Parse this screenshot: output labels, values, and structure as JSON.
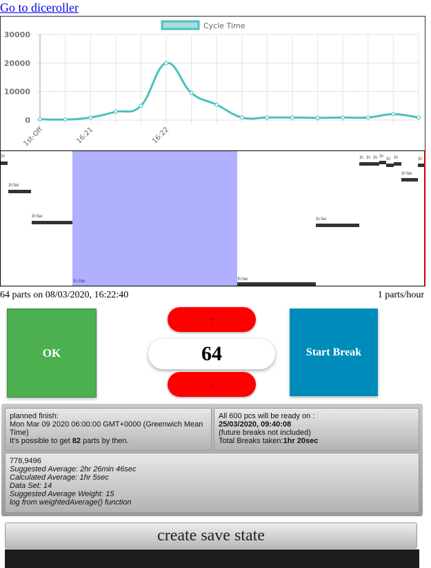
{
  "nav": {
    "link_text": "Go to diceroller"
  },
  "chart_data": {
    "type": "line",
    "legend": "Cycle Time",
    "x": [
      "1st-Off",
      "",
      "16:21",
      "",
      "",
      "16:22",
      "",
      "",
      "",
      "",
      "",
      "",
      "",
      "",
      "",
      ""
    ],
    "series": [
      {
        "name": "Cycle Time",
        "values": [
          300,
          200,
          900,
          2900,
          5000,
          20000,
          9500,
          5400,
          900,
          900,
          900,
          800,
          900,
          900,
          2100,
          900
        ]
      }
    ],
    "ylim": [
      0,
      30000
    ],
    "yticks": [
      0,
      10000,
      20000,
      30000
    ],
    "ytick_labels": [
      "0",
      "10000",
      "20000",
      "30000"
    ],
    "grid": true,
    "legend_position": "top-center",
    "color": "#4bc0c0"
  },
  "timeline": {
    "labels": [
      "1hr",
      "1hr 5sec",
      "1hr 5sec",
      "1hr 20sec",
      "1hr 5sec",
      "1hr 5sec",
      "1hr",
      "1hr",
      "1hr",
      "1hr",
      "1hr",
      "1hr",
      "1hr 5sec",
      "1hr"
    ],
    "break_color": "#b0b0ff"
  },
  "status": {
    "parts_summary": "64 parts on 08/03/2020, 16:22:40",
    "rate": "1 parts/hour"
  },
  "controls": {
    "ok_label": "OK",
    "plus_label": "+",
    "minus_label": "-",
    "count": "64",
    "break_label": "Start Break"
  },
  "planned": {
    "heading": "planned finish:",
    "date": "Mon Mar 09 2020 06:00:00 GMT+0000 (Greenwich Mean Time)",
    "possible_prefix": "It's possible to get ",
    "possible_count": "82",
    "possible_suffix": " parts by then."
  },
  "ready": {
    "heading": "All 600 pcs will be ready on :",
    "date": "25/03/2020, 09:40:08",
    "note": "(future breaks not included)",
    "breaks_prefix": "Total Breaks taken:",
    "breaks_value": "1hr 20sec"
  },
  "stats": {
    "raw": "778,9496",
    "suggested": "Suggested Average: 2hr 26min 46sec",
    "calculated": "Calculated Average: 1hr 5sec",
    "dataset": "Data Set: 14",
    "weight": "Suggested Average Weight: 15",
    "log": "log from weightedAverage() function"
  },
  "save": {
    "label": "create save state"
  }
}
